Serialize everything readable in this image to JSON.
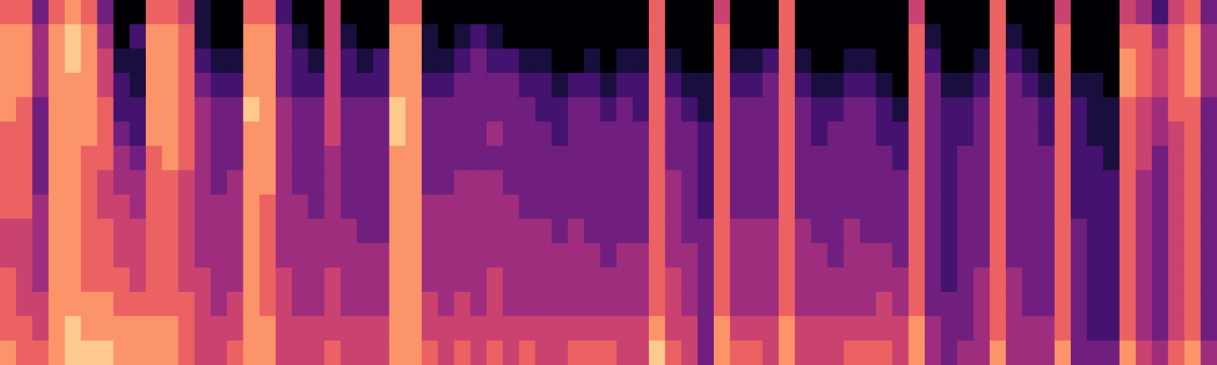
{
  "chart_data": {
    "type": "heatmap",
    "tick_labels": false,
    "color_range": [
      0,
      9
    ],
    "cells": [
      [
        6,
        7,
        7,
        7,
        7,
        6,
        6,
        6,
        6,
        5,
        5,
        6,
        6,
        6,
        7
      ],
      [
        6,
        7,
        7,
        7,
        6,
        6,
        6,
        6,
        6,
        5,
        5,
        5,
        5,
        6,
        6
      ],
      [
        3,
        4,
        4,
        4,
        3,
        3,
        3,
        3,
        4,
        4,
        4,
        4,
        5,
        5,
        6
      ],
      [
        6,
        7,
        7,
        7,
        7,
        7,
        7,
        7,
        7,
        7,
        7,
        7,
        7,
        7,
        7
      ],
      [
        7,
        8,
        8,
        7,
        7,
        7,
        7,
        7,
        7,
        7,
        7,
        7,
        7,
        8,
        8
      ],
      [
        6,
        7,
        7,
        7,
        7,
        7,
        6,
        6,
        6,
        6,
        6,
        6,
        7,
        7,
        8
      ],
      [
        3,
        4,
        5,
        5,
        6,
        6,
        6,
        5,
        5,
        6,
        6,
        6,
        7,
        7,
        8
      ],
      [
        0,
        0,
        1,
        2,
        2,
        3,
        4,
        4,
        5,
        5,
        5,
        6,
        6,
        7,
        7
      ],
      [
        0,
        2,
        1,
        1,
        2,
        2,
        3,
        4,
        4,
        5,
        5,
        5,
        6,
        7,
        7
      ],
      [
        6,
        7,
        7,
        7,
        7,
        7,
        6,
        6,
        6,
        6,
        6,
        6,
        6,
        7,
        7
      ],
      [
        6,
        7,
        7,
        7,
        7,
        7,
        7,
        6,
        6,
        6,
        6,
        6,
        6,
        7,
        7
      ],
      [
        5,
        6,
        6,
        6,
        6,
        6,
        6,
        5,
        5,
        5,
        5,
        5,
        6,
        6,
        6
      ],
      [
        1,
        1,
        2,
        3,
        4,
        4,
        4,
        4,
        4,
        4,
        4,
        5,
        5,
        5,
        5
      ],
      [
        0,
        0,
        1,
        2,
        3,
        3,
        3,
        3,
        4,
        4,
        4,
        4,
        4,
        5,
        5
      ],
      [
        0,
        0,
        1,
        2,
        3,
        3,
        3,
        4,
        4,
        4,
        4,
        4,
        5,
        5,
        6
      ],
      [
        6,
        7,
        7,
        7,
        8,
        7,
        7,
        7,
        7,
        7,
        7,
        7,
        7,
        7,
        7
      ],
      [
        6,
        7,
        7,
        7,
        7,
        7,
        7,
        7,
        6,
        6,
        6,
        6,
        6,
        7,
        7
      ],
      [
        2,
        3,
        3,
        3,
        4,
        4,
        4,
        4,
        4,
        4,
        4,
        5,
        5,
        5,
        5
      ],
      [
        0,
        1,
        2,
        2,
        3,
        3,
        3,
        3,
        4,
        4,
        4,
        4,
        4,
        5,
        5
      ],
      [
        0,
        0,
        1,
        2,
        3,
        3,
        3,
        3,
        3,
        4,
        4,
        4,
        4,
        5,
        5
      ],
      [
        5,
        5,
        5,
        5,
        5,
        5,
        4,
        4,
        4,
        4,
        4,
        5,
        5,
        5,
        6
      ],
      [
        0,
        1,
        2,
        2,
        3,
        3,
        3,
        3,
        3,
        4,
        4,
        4,
        4,
        5,
        5
      ],
      [
        0,
        0,
        1,
        2,
        3,
        3,
        3,
        3,
        3,
        3,
        4,
        4,
        4,
        5,
        5
      ],
      [
        0,
        0,
        2,
        2,
        3,
        3,
        3,
        3,
        3,
        3,
        4,
        4,
        4,
        5,
        5
      ],
      [
        6,
        7,
        7,
        7,
        8,
        8,
        7,
        7,
        7,
        7,
        7,
        7,
        7,
        7,
        7
      ],
      [
        6,
        7,
        7,
        7,
        7,
        7,
        7,
        7,
        7,
        7,
        7,
        7,
        7,
        7,
        7
      ],
      [
        0,
        1,
        1,
        2,
        3,
        3,
        3,
        3,
        4,
        4,
        4,
        4,
        5,
        5,
        6
      ],
      [
        0,
        0,
        1,
        2,
        3,
        3,
        3,
        3,
        4,
        4,
        4,
        4,
        4,
        5,
        5
      ],
      [
        0,
        1,
        2,
        3,
        3,
        3,
        3,
        4,
        4,
        4,
        4,
        4,
        5,
        5,
        6
      ],
      [
        0,
        2,
        3,
        3,
        3,
        3,
        3,
        4,
        4,
        4,
        4,
        4,
        4,
        5,
        5
      ],
      [
        0,
        1,
        2,
        3,
        3,
        4,
        3,
        4,
        4,
        4,
        4,
        5,
        5,
        5,
        6
      ],
      [
        0,
        0,
        2,
        3,
        3,
        3,
        3,
        3,
        4,
        4,
        4,
        4,
        4,
        5,
        5
      ],
      [
        0,
        0,
        1,
        2,
        3,
        3,
        3,
        3,
        3,
        4,
        4,
        4,
        4,
        5,
        6
      ],
      [
        0,
        0,
        1,
        2,
        2,
        3,
        3,
        3,
        3,
        4,
        4,
        4,
        4,
        5,
        5
      ],
      [
        0,
        0,
        0,
        1,
        2,
        2,
        3,
        3,
        3,
        3,
        4,
        4,
        4,
        5,
        5
      ],
      [
        0,
        0,
        0,
        2,
        3,
        3,
        3,
        3,
        3,
        4,
        4,
        4,
        4,
        5,
        6
      ],
      [
        0,
        0,
        1,
        2,
        3,
        3,
        3,
        3,
        3,
        3,
        4,
        4,
        4,
        5,
        6
      ],
      [
        0,
        0,
        0,
        1,
        2,
        3,
        3,
        3,
        3,
        3,
        3,
        4,
        4,
        5,
        6
      ],
      [
        0,
        0,
        1,
        2,
        3,
        3,
        3,
        3,
        3,
        3,
        4,
        4,
        4,
        5,
        5
      ],
      [
        0,
        0,
        1,
        2,
        2,
        3,
        3,
        3,
        3,
        3,
        4,
        4,
        4,
        5,
        5
      ],
      [
        6,
        6,
        6,
        6,
        6,
        6,
        6,
        6,
        6,
        6,
        6,
        6,
        6,
        7,
        8
      ],
      [
        0,
        0,
        1,
        2,
        3,
        3,
        3,
        4,
        4,
        4,
        4,
        5,
        5,
        5,
        6
      ],
      [
        0,
        0,
        0,
        1,
        2,
        3,
        3,
        3,
        3,
        3,
        4,
        4,
        4,
        5,
        5
      ],
      [
        0,
        0,
        0,
        1,
        1,
        2,
        2,
        2,
        2,
        3,
        3,
        3,
        3,
        3,
        3
      ],
      [
        5,
        6,
        6,
        6,
        6,
        6,
        6,
        6,
        6,
        6,
        6,
        6,
        6,
        7,
        7
      ],
      [
        0,
        0,
        1,
        2,
        3,
        3,
        3,
        3,
        3,
        4,
        4,
        4,
        4,
        5,
        6
      ],
      [
        0,
        0,
        1,
        2,
        3,
        3,
        3,
        3,
        3,
        4,
        4,
        4,
        4,
        5,
        6
      ],
      [
        0,
        0,
        2,
        3,
        3,
        3,
        3,
        3,
        3,
        4,
        4,
        4,
        4,
        5,
        5
      ],
      [
        6,
        6,
        6,
        6,
        6,
        6,
        6,
        6,
        6,
        6,
        6,
        6,
        6,
        7,
        7
      ],
      [
        0,
        0,
        1,
        2,
        3,
        3,
        3,
        3,
        3,
        4,
        4,
        4,
        4,
        5,
        5
      ],
      [
        0,
        0,
        0,
        1,
        2,
        2,
        3,
        3,
        3,
        3,
        4,
        4,
        4,
        5,
        5
      ],
      [
        0,
        0,
        0,
        1,
        2,
        3,
        3,
        3,
        3,
        3,
        3,
        4,
        4,
        5,
        5
      ],
      [
        0,
        0,
        1,
        2,
        3,
        3,
        3,
        3,
        3,
        4,
        4,
        4,
        4,
        5,
        6
      ],
      [
        0,
        0,
        1,
        2,
        3,
        3,
        3,
        3,
        3,
        3,
        4,
        4,
        4,
        5,
        6
      ],
      [
        0,
        0,
        0,
        1,
        2,
        2,
        3,
        3,
        3,
        3,
        4,
        4,
        5,
        5,
        6
      ],
      [
        0,
        0,
        0,
        0,
        1,
        2,
        2,
        3,
        3,
        3,
        3,
        4,
        4,
        5,
        5
      ],
      [
        5,
        6,
        6,
        6,
        6,
        6,
        6,
        6,
        6,
        6,
        6,
        6,
        6,
        7,
        7
      ],
      [
        0,
        1,
        2,
        3,
        3,
        3,
        3,
        3,
        3,
        3,
        3,
        3,
        3,
        4,
        4
      ],
      [
        0,
        0,
        0,
        1,
        2,
        2,
        2,
        2,
        2,
        2,
        2,
        2,
        3,
        3,
        3
      ],
      [
        0,
        0,
        0,
        1,
        2,
        2,
        3,
        3,
        3,
        3,
        3,
        3,
        3,
        3,
        4
      ],
      [
        0,
        0,
        1,
        2,
        3,
        3,
        3,
        3,
        3,
        3,
        3,
        4,
        4,
        4,
        4
      ],
      [
        6,
        6,
        6,
        6,
        6,
        6,
        6,
        6,
        6,
        6,
        6,
        6,
        6,
        6,
        7
      ],
      [
        0,
        1,
        2,
        3,
        3,
        3,
        3,
        3,
        3,
        3,
        3,
        4,
        4,
        4,
        4
      ],
      [
        0,
        0,
        1,
        2,
        3,
        3,
        3,
        3,
        3,
        3,
        3,
        3,
        3,
        4,
        4
      ],
      [
        0,
        0,
        0,
        1,
        2,
        2,
        3,
        3,
        3,
        3,
        3,
        3,
        3,
        4,
        4
      ],
      [
        5,
        6,
        6,
        6,
        6,
        6,
        6,
        6,
        6,
        6,
        6,
        6,
        6,
        6,
        7
      ],
      [
        0,
        0,
        0,
        1,
        2,
        2,
        2,
        2,
        2,
        3,
        3,
        3,
        3,
        3,
        3
      ],
      [
        0,
        0,
        0,
        1,
        1,
        1,
        2,
        2,
        2,
        2,
        2,
        2,
        2,
        2,
        3
      ],
      [
        0,
        0,
        0,
        0,
        1,
        1,
        1,
        2,
        2,
        2,
        2,
        2,
        2,
        2,
        3
      ],
      [
        5,
        6,
        7,
        7,
        6,
        6,
        6,
        6,
        6,
        6,
        6,
        6,
        6,
        6,
        7
      ],
      [
        4,
        6,
        6,
        6,
        5,
        5,
        5,
        4,
        4,
        4,
        4,
        4,
        4,
        4,
        5
      ],
      [
        2,
        4,
        5,
        5,
        4,
        4,
        3,
        3,
        3,
        3,
        3,
        3,
        3,
        3,
        4
      ],
      [
        5,
        6,
        6,
        6,
        6,
        5,
        5,
        5,
        5,
        5,
        5,
        5,
        5,
        5,
        6
      ],
      [
        6,
        7,
        7,
        7,
        6,
        6,
        6,
        6,
        6,
        6,
        6,
        6,
        6,
        6,
        7
      ],
      [
        3,
        4,
        4,
        4,
        3,
        3,
        3,
        3,
        3,
        3,
        3,
        3,
        3,
        3,
        4
      ]
    ]
  }
}
